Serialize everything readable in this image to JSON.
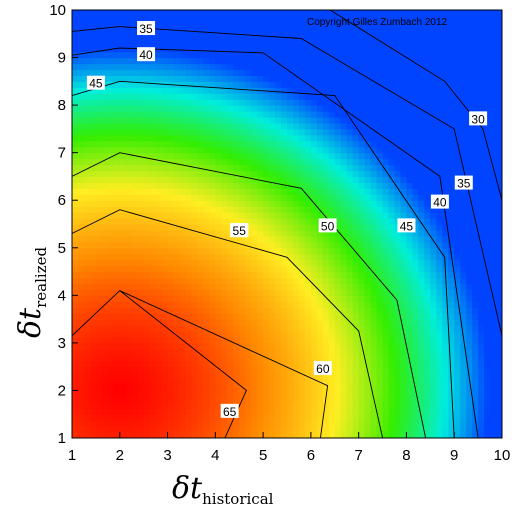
{
  "chart_data": {
    "type": "heatmap",
    "subtype": "filled-contour",
    "copyright": "Copyright Gilles Zumbach 2012",
    "xlabel": {
      "symbol": "δt",
      "subscript": "historical"
    },
    "ylabel": {
      "symbol": "δt",
      "subscript": "realized"
    },
    "xlim": [
      1,
      10
    ],
    "ylim": [
      1,
      10
    ],
    "x_ticks": [
      "1",
      "2",
      "3",
      "4",
      "5",
      "6",
      "7",
      "8",
      "9",
      "10"
    ],
    "y_ticks": [
      "1",
      "2",
      "3",
      "4",
      "5",
      "6",
      "7",
      "8",
      "9",
      "10"
    ],
    "colormap": [
      "#ff0000",
      "#ff8800",
      "#ffee22",
      "#33ee00",
      "#00eedd",
      "#0044ff"
    ],
    "value_range": [
      25,
      67
    ],
    "peak": {
      "x": 2,
      "y": 2,
      "value": 67
    },
    "contours": [
      {
        "level": 65,
        "label": "65",
        "points": [
          [
            2.0,
            4.1
          ],
          [
            4.65,
            2.0
          ],
          [
            4.2,
            1.0
          ]
        ],
        "label_at": [
          4.3,
          1.55
        ]
      },
      {
        "level": 60,
        "label": "60",
        "points": [
          [
            1.0,
            3.15
          ],
          [
            2.0,
            4.1
          ],
          [
            6.35,
            2.1
          ],
          [
            6.2,
            1.0
          ]
        ],
        "label_at": [
          6.25,
          2.45
        ]
      },
      {
        "level": 55,
        "label": "55",
        "points": [
          [
            1.0,
            5.3
          ],
          [
            2.0,
            5.8
          ],
          [
            5.5,
            4.8
          ],
          [
            7.0,
            3.25
          ],
          [
            7.5,
            1.0
          ]
        ],
        "label_at": [
          4.5,
          5.35
        ]
      },
      {
        "level": 50,
        "label": "50",
        "points": [
          [
            1.0,
            6.5
          ],
          [
            2.0,
            7.0
          ],
          [
            5.8,
            6.25
          ],
          [
            7.8,
            3.9
          ],
          [
            8.4,
            1.0
          ]
        ],
        "label_at": [
          6.35,
          5.45
        ]
      },
      {
        "level": 45,
        "label": "45",
        "points": [
          [
            1.0,
            8.2
          ],
          [
            2.0,
            8.5
          ],
          [
            6.5,
            8.2
          ],
          [
            8.8,
            4.8
          ],
          [
            9.0,
            1.0
          ]
        ],
        "label_at": [
          8.0,
          5.45
        ]
      },
      {
        "level": 40,
        "label": "40",
        "points": [
          [
            1.0,
            9.05
          ],
          [
            2.0,
            9.2
          ],
          [
            5.0,
            9.1
          ],
          [
            8.7,
            6.5
          ],
          [
            9.5,
            1.0
          ]
        ],
        "label_at": [
          8.7,
          5.95
        ]
      },
      {
        "level": 35,
        "label": "35",
        "points": [
          [
            1.0,
            9.55
          ],
          [
            2.0,
            9.65
          ],
          [
            5.8,
            9.4
          ],
          [
            9.0,
            7.5
          ],
          [
            10.0,
            3.15
          ]
        ],
        "label_at": [
          9.2,
          6.35
        ]
      },
      {
        "level": 30,
        "label": "30",
        "points": [
          [
            6.4,
            10.0
          ],
          [
            8.8,
            8.5
          ],
          [
            9.6,
            7.5
          ],
          [
            10.0,
            6.0
          ]
        ],
        "label_at": [
          9.5,
          7.7
        ]
      }
    ],
    "extra_labels": [
      {
        "label": "35",
        "at": [
          2.55,
          9.6
        ]
      },
      {
        "label": "40",
        "at": [
          2.55,
          9.05
        ]
      },
      {
        "label": "45",
        "at": [
          1.5,
          8.45
        ]
      },
      {
        "label": "55",
        "at": [
          4.5,
          5.35
        ]
      }
    ]
  }
}
